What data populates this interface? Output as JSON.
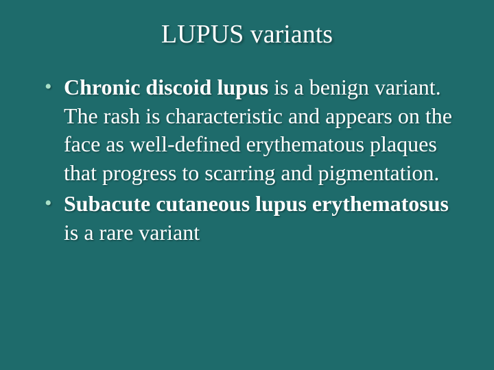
{
  "slide": {
    "title": "LUPUS variants",
    "background_color": "#1e6b6b",
    "text_color": "#ffffff",
    "bullet_color": "#a8e0c8",
    "title_fontsize": 38,
    "body_fontsize": 32,
    "bullets": [
      {
        "bold_part": "Chronic discoid lupus",
        "rest_part": " is a benign variant. The rash is characteristic and appears on the face as well-defined erythematous plaques that progress to scarring and pigmentation."
      },
      {
        "bold_part": "Subacute cutaneous lupus erythematosus",
        "rest_part": " is a rare variant"
      }
    ]
  }
}
